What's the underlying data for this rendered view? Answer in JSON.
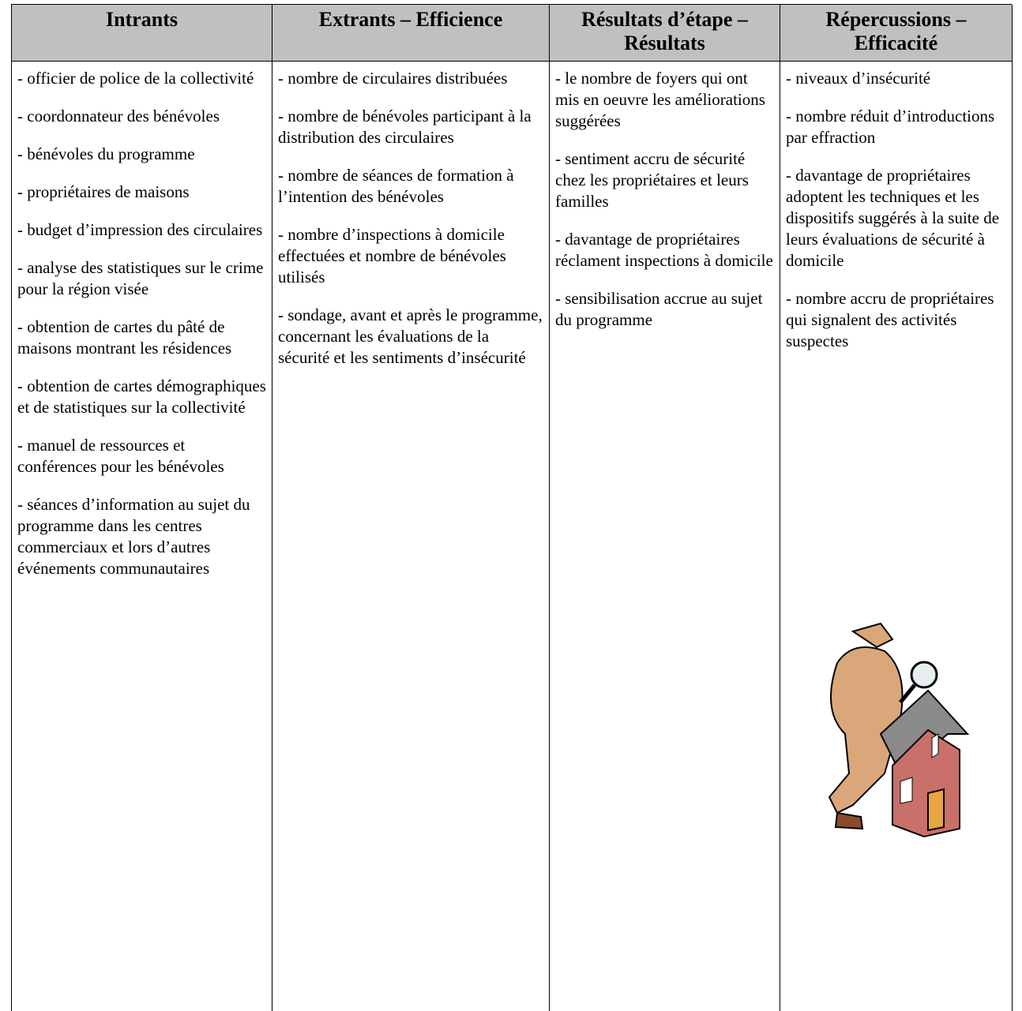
{
  "table": {
    "headers": [
      "Intrants",
      "Extrants – Efficience",
      "Résultats d’étape – Résultats",
      "Répercussions – Efficacité"
    ],
    "columns": [
      [
        "- officier de police de la collectivité",
        "- coordonnateur des bénévoles",
        "- bénévoles du programme",
        "- propriétaires de maisons",
        "- budget d’impression des circulaires",
        "- analyse des statistiques sur le crime pour la région visée",
        "- obtention de cartes du pâté de maisons montrant les résidences",
        "- obtention de cartes démographiques et de statistiques sur la collectivité",
        "- manuel de ressources et conférences pour les bénévoles",
        "- séances d’information au sujet du programme dans les centres commerciaux et lors d’autres événements communautaires"
      ],
      [
        "- nombre de circulaires distribuées",
        "- nombre de bénévoles participant à la distribution des circulaires",
        "- nombre de séances de formation à l’intention des bénévoles",
        "- nombre d’inspections à domicile effectuées et nombre de bénévoles utilisés",
        "- sondage, avant et après le programme, concernant les évaluations de la sécurité et les sentiments d’insécurité"
      ],
      [
        "- le nombre de foyers qui ont mis en oeuvre les améliorations suggérées",
        "- sentiment accru de sécurité chez les propriétaires et leurs familles",
        "- davantage de propriétaires réclament inspections à domicile",
        "- sensibilisation accrue au sujet du programme"
      ],
      [
        "- niveaux d’insécurité",
        "- nombre réduit d’introductions par effraction",
        "- davantage de propriétaires adoptent les techniques et les dispositifs suggérés à la suite de leurs évaluations de sécurité à domicile",
        "- nombre accru de propriétaires qui signalent des activités suspectes"
      ]
    ]
  }
}
